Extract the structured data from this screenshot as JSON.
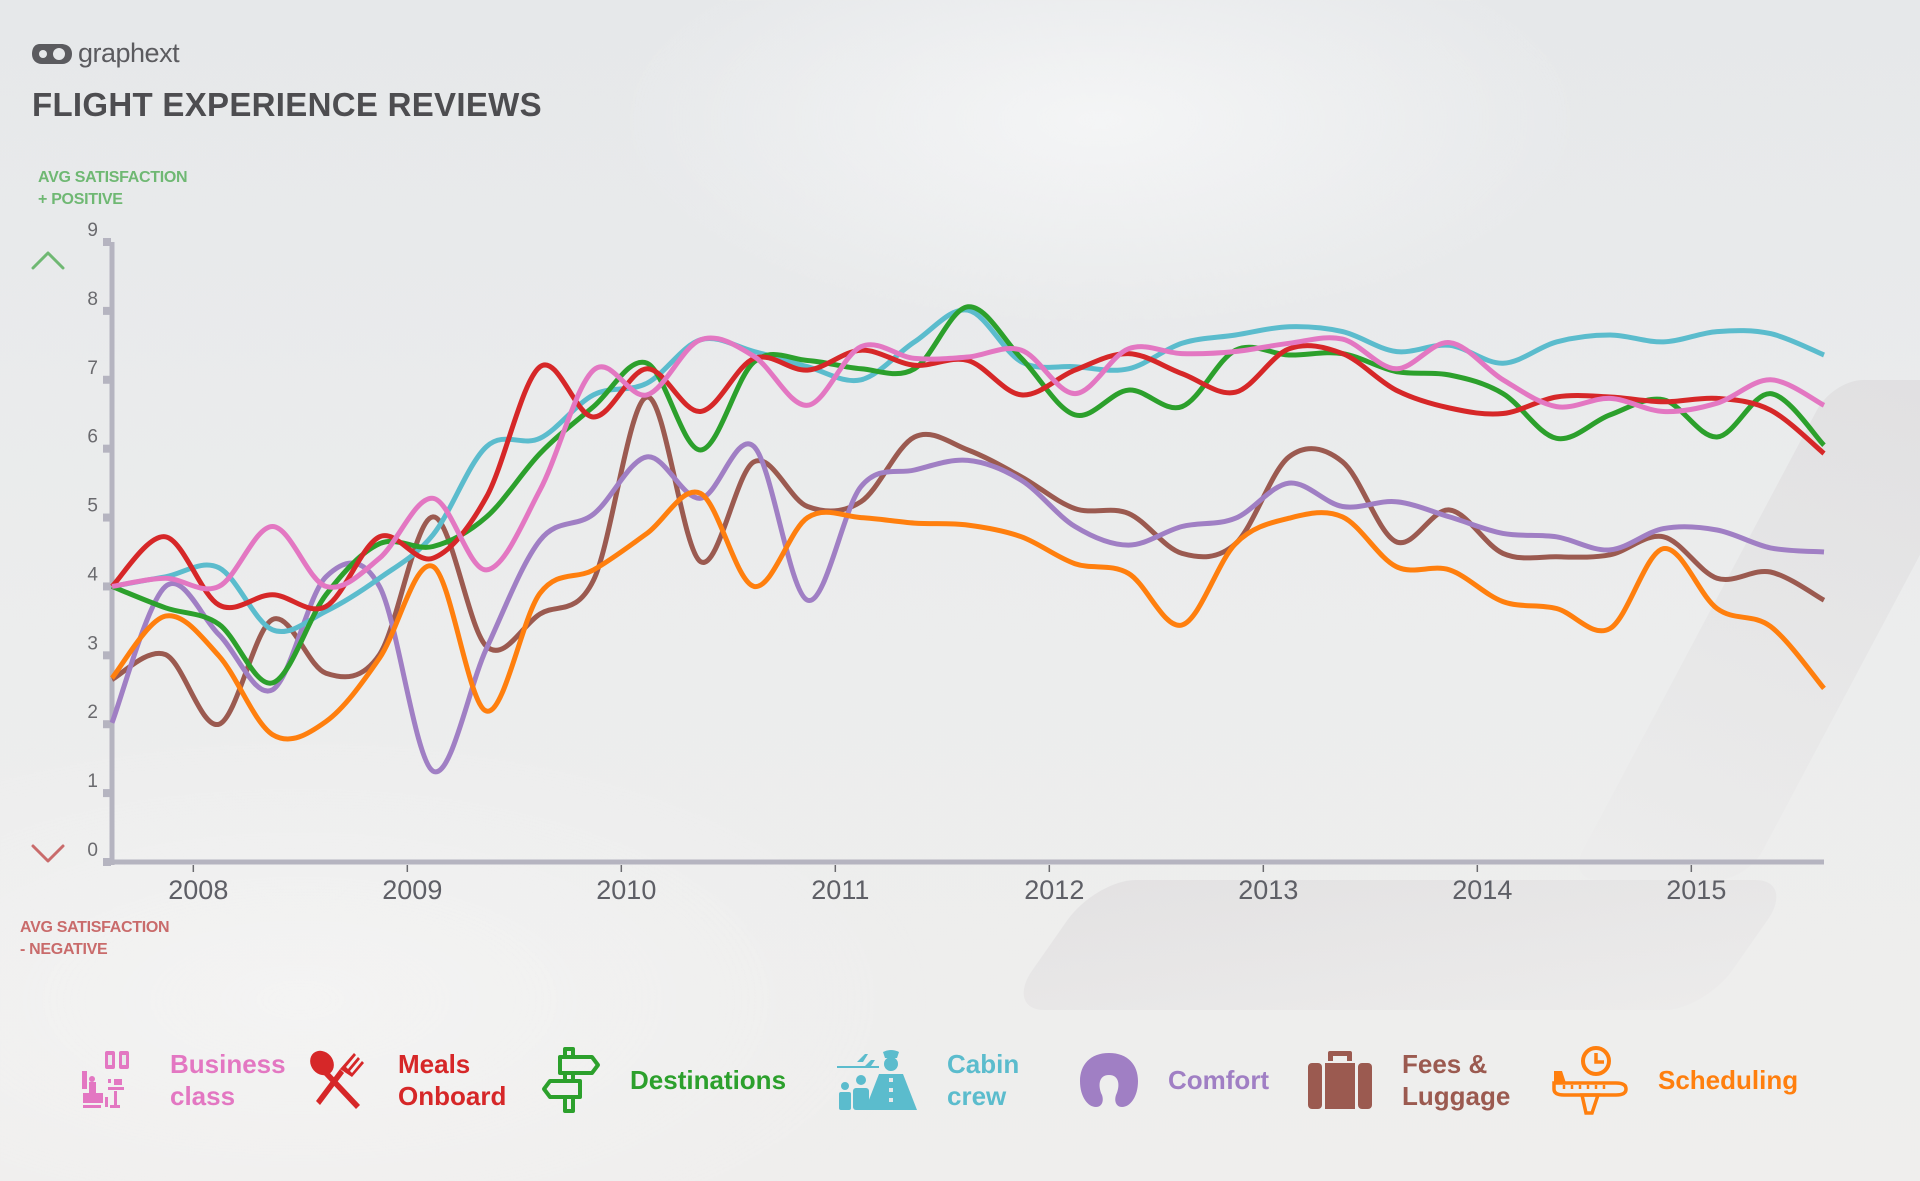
{
  "brand": {
    "name": "graphext",
    "icon": "graphext-logo-icon"
  },
  "title": "FLIGHT EXPERIENCE REVIEWS",
  "axis_notes": {
    "positive": [
      "AVG SATISFACTION",
      "+ POSITIVE"
    ],
    "negative": [
      "AVG SATISFACTION",
      "- NEGATIVE"
    ]
  },
  "colors": {
    "axis": "#b5b4c0",
    "positive": "#6fb873",
    "negative": "#c96b6b"
  },
  "legend": [
    {
      "label_lines": [
        "Business",
        "class"
      ],
      "icon": "business-class-seat-icon",
      "color": "#e377c2"
    },
    {
      "label_lines": [
        "Meals",
        "Onboard"
      ],
      "icon": "spoon-fork-icon",
      "color": "#d62728"
    },
    {
      "label_lines": [
        "Destinations"
      ],
      "icon": "signpost-icon",
      "color": "#2ca02c"
    },
    {
      "label_lines": [
        "Cabin",
        "crew"
      ],
      "icon": "flight-attendant-icon",
      "color": "#5bbccd"
    },
    {
      "label_lines": [
        "Comfort"
      ],
      "icon": "neck-pillow-icon",
      "color": "#a07fc4"
    },
    {
      "label_lines": [
        "Fees &",
        "Luggage"
      ],
      "icon": "suitcase-icon",
      "color": "#9b5a50"
    },
    {
      "label_lines": [
        "Scheduling"
      ],
      "icon": "plane-clock-icon",
      "color": "#ff7f0e"
    }
  ],
  "chart_data": {
    "type": "line",
    "title": "FLIGHT EXPERIENCE REVIEWS",
    "xlabel": "",
    "ylabel": "Avg satisfaction",
    "x_start": 2007.62,
    "x_step": 0.25,
    "xlim": [
      2007.62,
      2015.62
    ],
    "ylim": [
      0,
      9
    ],
    "x_ticks": [
      2008,
      2009,
      2010,
      2011,
      2012,
      2013,
      2014,
      2015
    ],
    "x_tick_labels": [
      "2008",
      "2009",
      "2010",
      "2011",
      "2012",
      "2013",
      "2014",
      "2015"
    ],
    "y_ticks": [
      0,
      1,
      2,
      3,
      4,
      5,
      6,
      7,
      8,
      9
    ],
    "y_tick_labels": [
      "0",
      "1",
      "2",
      "3",
      "4",
      "5",
      "6",
      "7",
      "8",
      "9"
    ],
    "grid": false,
    "legend_position": "bottom",
    "series": [
      {
        "name": "Fees & Luggage",
        "color": "#9b5a50",
        "values": [
          2.65,
          3.01,
          2.0,
          3.52,
          2.74,
          3.01,
          5.01,
          3.13,
          3.6,
          4.09,
          6.75,
          4.36,
          5.81,
          5.16,
          5.23,
          6.17,
          5.98,
          5.59,
          5.13,
          5.06,
          4.48,
          4.62,
          5.88,
          5.81,
          4.65,
          5.11,
          4.48,
          4.43,
          4.46,
          4.72,
          4.12,
          4.21,
          3.8
        ]
      },
      {
        "name": "Comfort",
        "color": "#a07fc4",
        "values": [
          2.02,
          4.0,
          3.3,
          2.5,
          4.14,
          4.0,
          1.32,
          3.1,
          4.67,
          5.05,
          5.88,
          5.28,
          6.03,
          3.8,
          5.45,
          5.69,
          5.83,
          5.54,
          4.87,
          4.6,
          4.87,
          4.99,
          5.5,
          5.16,
          5.23,
          5.01,
          4.77,
          4.72,
          4.53,
          4.84,
          4.82,
          4.56,
          4.5
        ]
      },
      {
        "name": "Scheduling",
        "color": "#ff7f0e",
        "values": [
          2.67,
          3.57,
          2.99,
          1.85,
          2.04,
          2.96,
          4.29,
          2.19,
          3.9,
          4.24,
          4.77,
          5.35,
          4.0,
          5.0,
          5.0,
          4.92,
          4.89,
          4.72,
          4.33,
          4.19,
          3.44,
          4.62,
          4.99,
          5.01,
          4.29,
          4.24,
          3.78,
          3.68,
          3.39,
          4.55,
          3.68,
          3.42,
          2.52
        ]
      },
      {
        "name": "Cabin crew",
        "color": "#5bbccd",
        "values": [
          4.0,
          4.14,
          4.27,
          3.37,
          3.64,
          4.12,
          4.75,
          6.03,
          6.15,
          6.78,
          6.95,
          7.58,
          7.41,
          7.19,
          7.0,
          7.55,
          8.01,
          7.26,
          7.19,
          7.16,
          7.53,
          7.65,
          7.77,
          7.7,
          7.41,
          7.5,
          7.24,
          7.55,
          7.65,
          7.55,
          7.7,
          7.67,
          7.36
        ]
      },
      {
        "name": "Destinations",
        "color": "#2ca02c",
        "values": [
          4.0,
          3.69,
          3.45,
          2.6,
          3.88,
          4.62,
          4.58,
          5.01,
          5.93,
          6.61,
          7.24,
          5.98,
          7.26,
          7.28,
          7.16,
          7.16,
          8.06,
          7.31,
          6.49,
          6.85,
          6.61,
          7.43,
          7.36,
          7.38,
          7.12,
          7.07,
          6.8,
          6.15,
          6.49,
          6.71,
          6.17,
          6.8,
          6.05
        ]
      },
      {
        "name": "Meals Onboard",
        "color": "#d62728",
        "values": [
          4.0,
          4.72,
          3.73,
          3.88,
          3.71,
          4.72,
          4.41,
          5.3,
          7.19,
          6.46,
          7.16,
          6.54,
          7.31,
          7.14,
          7.43,
          7.21,
          7.28,
          6.78,
          7.14,
          7.38,
          7.09,
          6.82,
          7.45,
          7.38,
          6.85,
          6.59,
          6.51,
          6.75,
          6.75,
          6.68,
          6.73,
          6.56,
          5.93
        ]
      },
      {
        "name": "Business class",
        "color": "#e377c2",
        "values": [
          4.0,
          4.12,
          4.0,
          4.87,
          4.0,
          4.41,
          5.28,
          4.24,
          5.4,
          7.14,
          6.78,
          7.58,
          7.34,
          6.63,
          7.48,
          7.31,
          7.33,
          7.43,
          6.8,
          7.45,
          7.38,
          7.41,
          7.53,
          7.59,
          7.16,
          7.54,
          7.0,
          6.61,
          6.73,
          6.54,
          6.66,
          7.0,
          6.63
        ]
      }
    ]
  }
}
